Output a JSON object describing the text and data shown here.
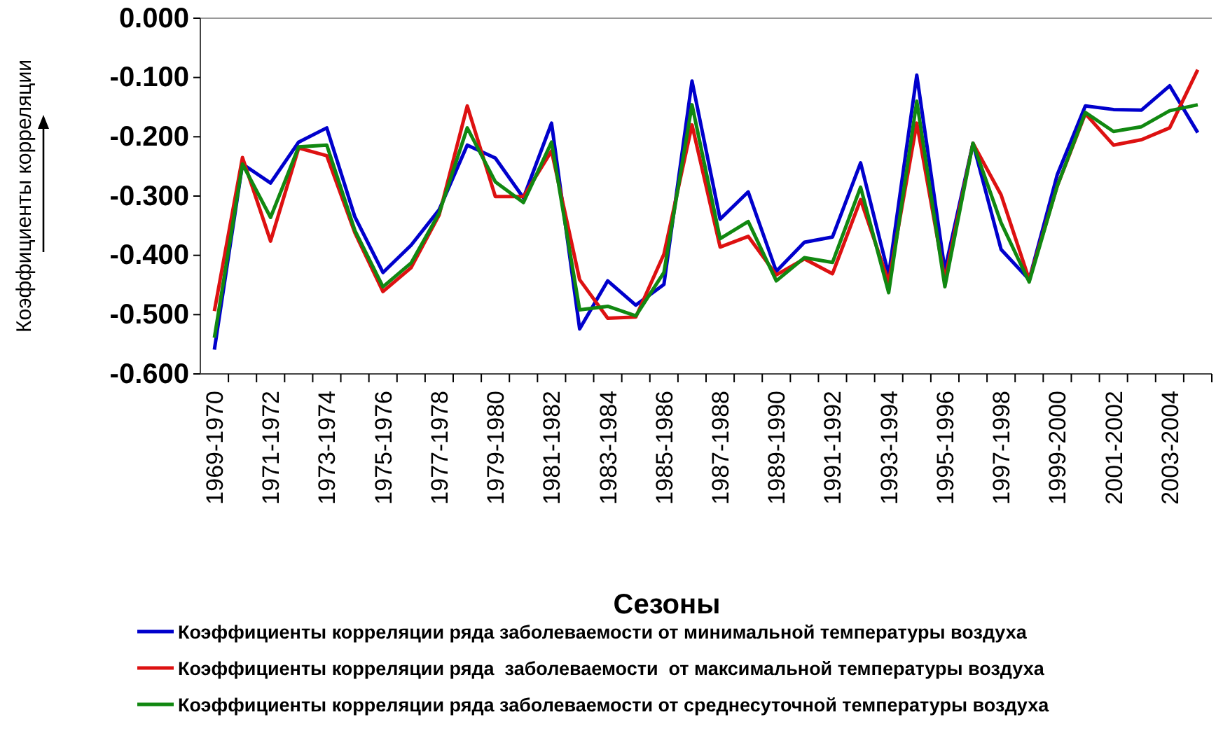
{
  "chart_data": {
    "type": "line",
    "xlabel": "Сезоны",
    "ylabel": "Коэффициенты корреляции",
    "categories": [
      "1969-1970",
      null,
      "1971-1972",
      null,
      "1973-1974",
      null,
      "1975-1976",
      null,
      "1977-1978",
      null,
      "1979-1980",
      null,
      "1981-1982",
      null,
      "1983-1984",
      null,
      "1985-1986",
      null,
      "1987-1988",
      null,
      "1989-1990",
      null,
      "1991-1992",
      null,
      "1993-1994",
      null,
      "1995-1996",
      null,
      "1997-1998",
      null,
      "1999-2000",
      null,
      "2001-2002",
      null,
      "2003-2004",
      null
    ],
    "series": [
      {
        "name": "Коэффициенты корреляции ряда заболеваемости от минимальной температуры воздуха",
        "color": "#0000cc",
        "values": [
          -0.559,
          -0.246,
          -0.278,
          -0.209,
          -0.185,
          -0.335,
          -0.429,
          -0.383,
          -0.323,
          -0.214,
          -0.236,
          -0.303,
          -0.177,
          -0.524,
          -0.443,
          -0.484,
          -0.449,
          -0.106,
          -0.339,
          -0.293,
          -0.427,
          -0.378,
          -0.369,
          -0.244,
          -0.433,
          -0.096,
          -0.425,
          -0.211,
          -0.39,
          -0.441,
          -0.264,
          -0.148,
          -0.154,
          -0.155,
          -0.114,
          -0.193
        ]
      },
      {
        "name": "Коэффициенты корреляции ряда  заболеваемости  от максимальной температуры воздуха",
        "color": "#dd1111",
        "values": [
          -0.494,
          -0.235,
          -0.376,
          -0.219,
          -0.232,
          -0.362,
          -0.461,
          -0.421,
          -0.332,
          -0.148,
          -0.301,
          -0.301,
          -0.224,
          -0.441,
          -0.506,
          -0.504,
          -0.398,
          -0.18,
          -0.386,
          -0.368,
          -0.433,
          -0.406,
          -0.431,
          -0.306,
          -0.445,
          -0.177,
          -0.441,
          -0.211,
          -0.298,
          -0.441,
          -0.283,
          -0.161,
          -0.214,
          -0.205,
          -0.185,
          -0.087
        ]
      },
      {
        "name": "Коэффициенты корреляции ряда заболеваемости от среднесуточной температуры воздуха",
        "color": "#118811",
        "values": [
          -0.539,
          -0.246,
          -0.336,
          -0.217,
          -0.214,
          -0.358,
          -0.453,
          -0.413,
          -0.329,
          -0.185,
          -0.276,
          -0.311,
          -0.209,
          -0.492,
          -0.486,
          -0.502,
          -0.429,
          -0.146,
          -0.372,
          -0.343,
          -0.443,
          -0.404,
          -0.412,
          -0.285,
          -0.463,
          -0.14,
          -0.453,
          -0.211,
          -0.345,
          -0.445,
          -0.283,
          -0.159,
          -0.191,
          -0.183,
          -0.156,
          -0.146
        ]
      }
    ],
    "ylim": [
      -0.6,
      0
    ],
    "yticks": [
      {
        "value": -0.6,
        "label": "-0.600"
      },
      {
        "value": -0.5,
        "label": "-0.500"
      },
      {
        "value": -0.4,
        "label": "-0.400"
      },
      {
        "value": -0.3,
        "label": "-0.300"
      },
      {
        "value": -0.2,
        "label": "-0.200"
      },
      {
        "value": -0.1,
        "label": "-0.100"
      },
      {
        "value": 0,
        "label": "0.000"
      }
    ],
    "grid": false,
    "legend": "bottom",
    "marker": "none",
    "line_style": "solid"
  }
}
